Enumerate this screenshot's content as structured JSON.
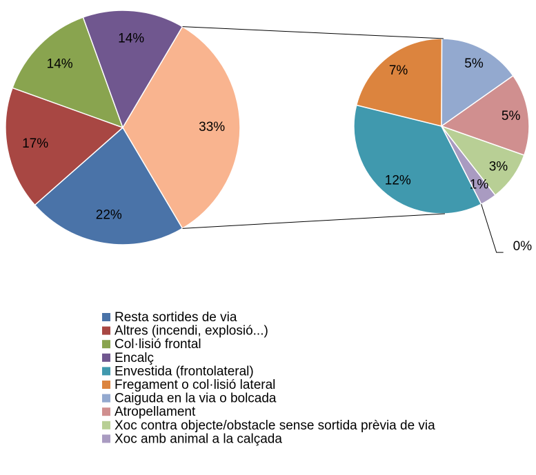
{
  "chart_data": {
    "type": "pie_of_pie",
    "pies": [
      {
        "categories": [
          "Resta sortides de via",
          "Altres (incendi, explosió...)",
          "Col·lisió frontal",
          "Encalç",
          null
        ],
        "values": [
          22,
          17,
          14,
          14,
          33
        ],
        "value_labels": [
          "22%",
          "17%",
          "14%",
          "14%",
          "33%"
        ],
        "colors": [
          "#4a73a8",
          "#a84743",
          "#89a44f",
          "#70578f",
          "#f9b48f"
        ]
      },
      {
        "categories": [
          "Envestida (frontolateral)",
          "Fregament o col·lisió lateral",
          "Caiguda en la via o bolcada",
          "Atropellament",
          "Xoc contra objecte/obstacle sense sortida prèvia de via",
          "Xoc amb animal a la calçada",
          null
        ],
        "values": [
          12,
          7,
          5,
          5,
          3,
          1,
          0
        ],
        "value_labels": [
          "12%",
          "7%",
          "5%",
          "5%",
          "3%",
          "1%",
          "0%"
        ],
        "colors": [
          "#4099ae",
          "#dc843e",
          "#93a9cf",
          "#d08f8f",
          "#b8cf95",
          "#a99bc1",
          "#8dc6d9"
        ]
      }
    ]
  }
}
